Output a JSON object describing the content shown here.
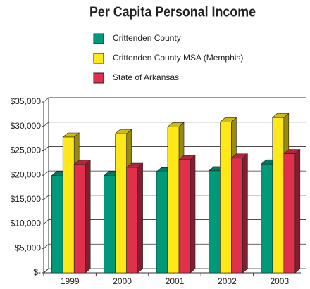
{
  "chart_data": {
    "type": "bar3d",
    "title": "Per Capita Personal Income",
    "categories": [
      "1999",
      "2000",
      "2001",
      "2002",
      "2003"
    ],
    "series": [
      {
        "name": "Crittenden County",
        "color": "#00997a",
        "values": [
          19900,
          19900,
          20700,
          20900,
          22300
        ]
      },
      {
        "name": "Crittenden County MSA (Memphis)",
        "color": "#ffe81a",
        "values": [
          27800,
          28500,
          29900,
          30900,
          31800
        ]
      },
      {
        "name": "State of Arkansas",
        "color": "#e0314c",
        "values": [
          22200,
          21600,
          23200,
          23500,
          24400
        ]
      }
    ],
    "ylim": [
      0,
      35000
    ],
    "yticks": [
      {
        "value": 0,
        "label": "$-"
      },
      {
        "value": 5000,
        "label": "$5,000"
      },
      {
        "value": 10000,
        "label": "$10,000"
      },
      {
        "value": 15000,
        "label": "$15,000"
      },
      {
        "value": 20000,
        "label": "$20,000"
      },
      {
        "value": 25000,
        "label": "$25,000"
      },
      {
        "value": 30000,
        "label": "$30,000"
      },
      {
        "value": 35000,
        "label": "$35,000"
      }
    ],
    "grid": true
  }
}
